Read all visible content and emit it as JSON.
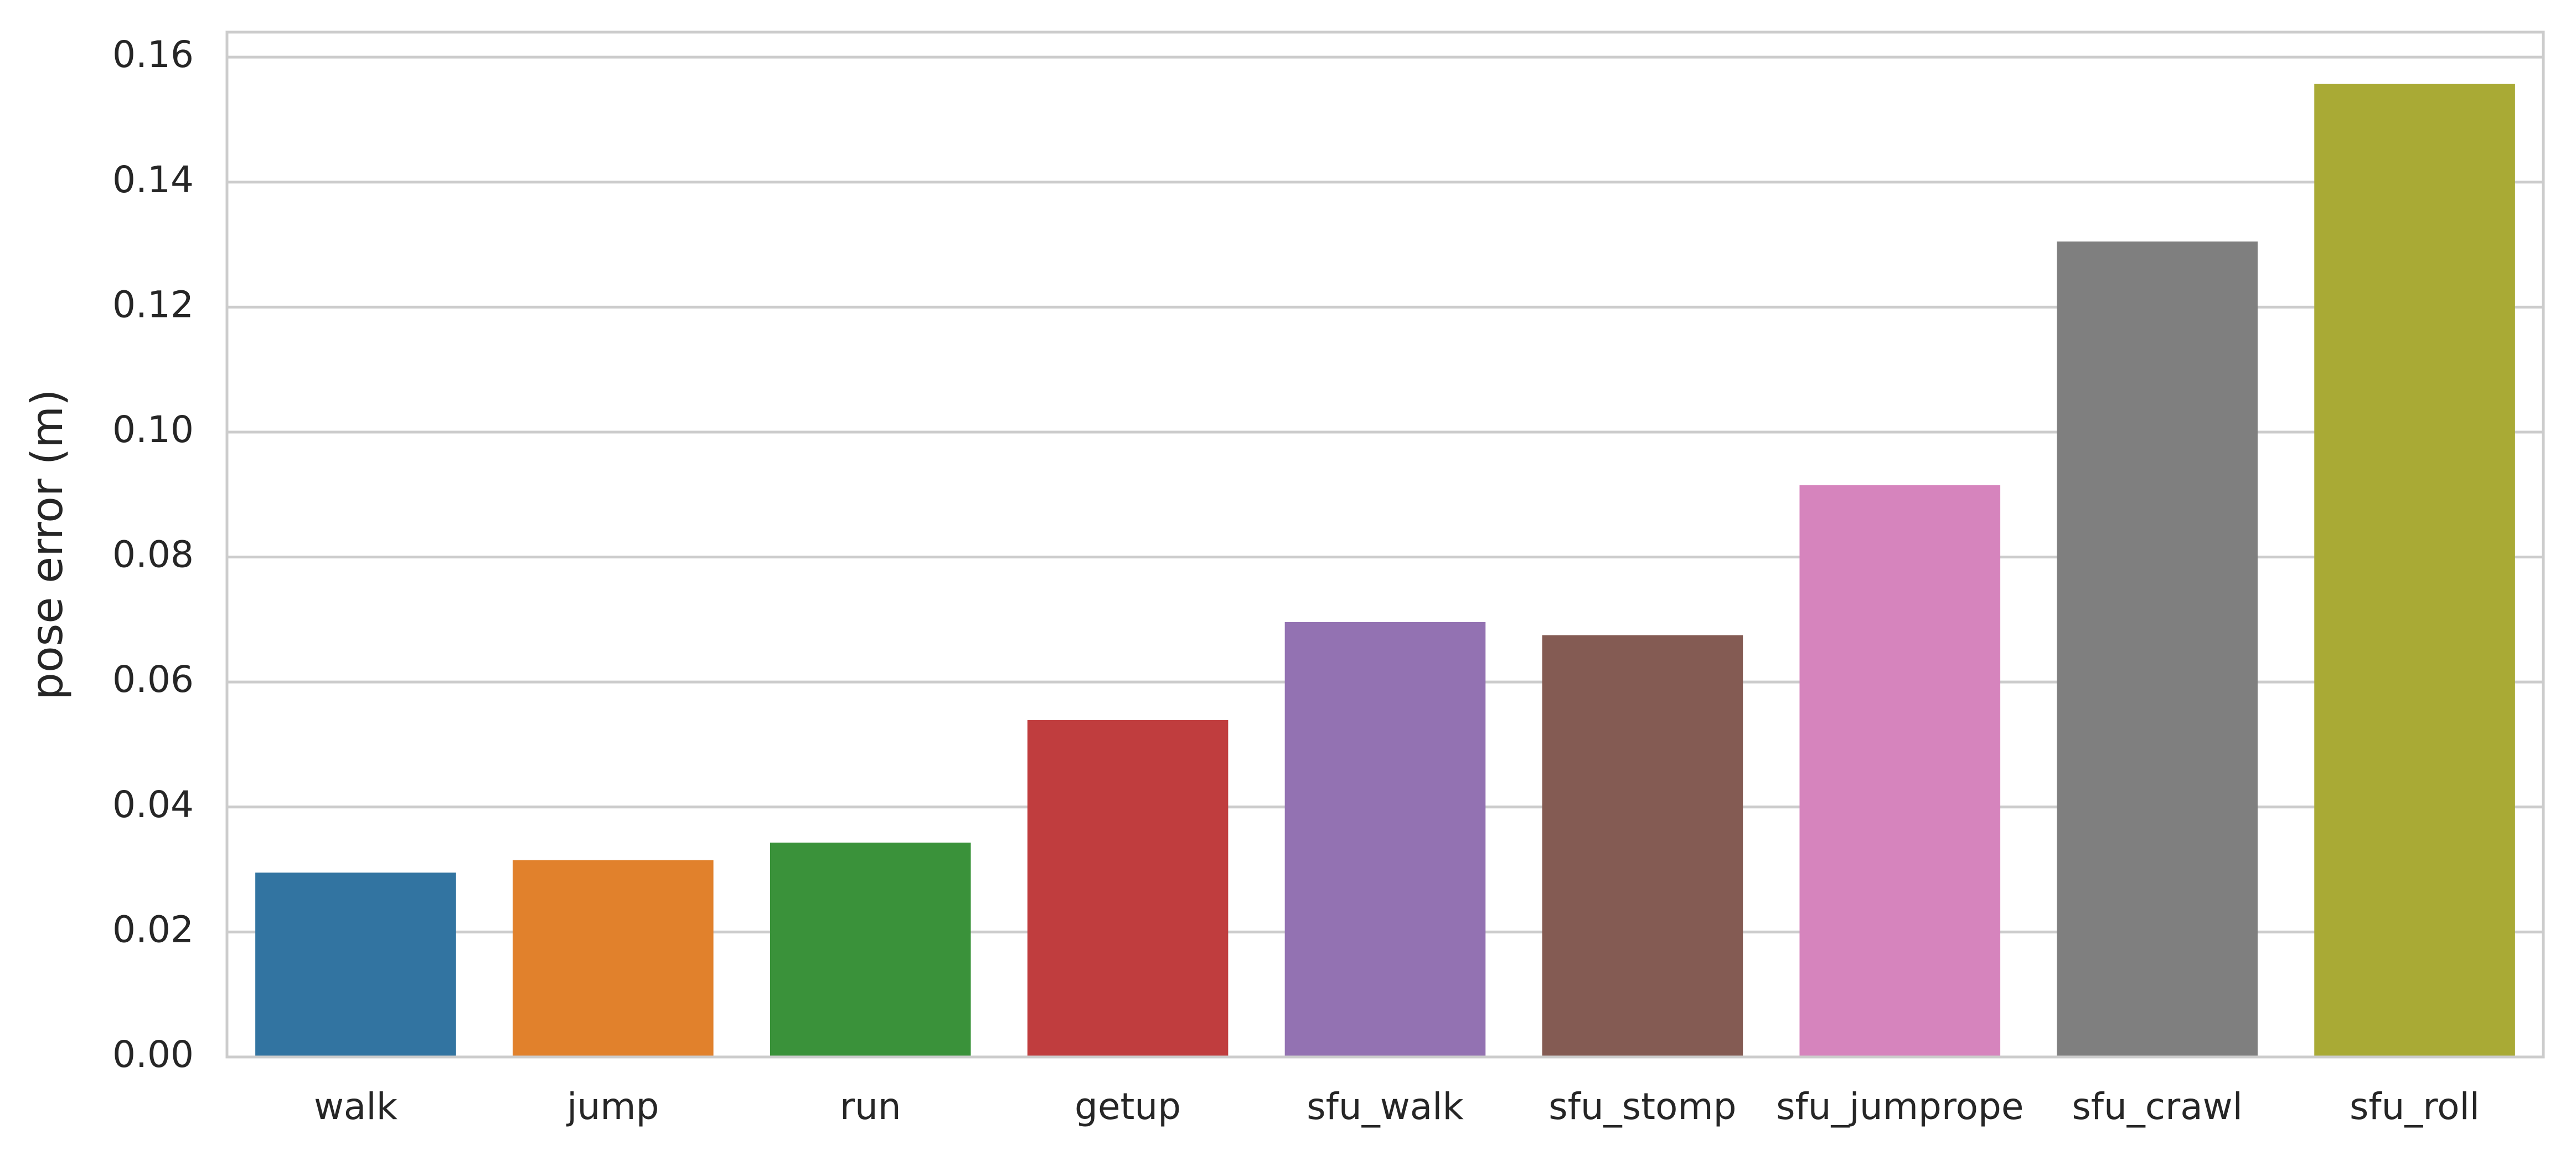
{
  "chart_data": {
    "type": "bar",
    "title": "",
    "xlabel": "",
    "ylabel": "pose error (m)",
    "categories": [
      "walk",
      "jump",
      "run",
      "getup",
      "sfu_walk",
      "sfu_stomp",
      "sfu_jumprope",
      "sfu_crawl",
      "sfu_roll"
    ],
    "values": [
      0.0295,
      0.0315,
      0.0343,
      0.0539,
      0.0696,
      0.0675,
      0.0915,
      0.1305,
      0.1557
    ],
    "colors": [
      "#3274a1",
      "#e1812c",
      "#3a923a",
      "#c03d3e",
      "#9372b2",
      "#845b53",
      "#d684bd",
      "#7f7f7f",
      "#a9aa35"
    ],
    "ylim": [
      0,
      0.164
    ],
    "yticks": [
      "0.00",
      "0.02",
      "0.04",
      "0.06",
      "0.08",
      "0.10",
      "0.12",
      "0.14",
      "0.16"
    ],
    "grid": "horizontal"
  }
}
